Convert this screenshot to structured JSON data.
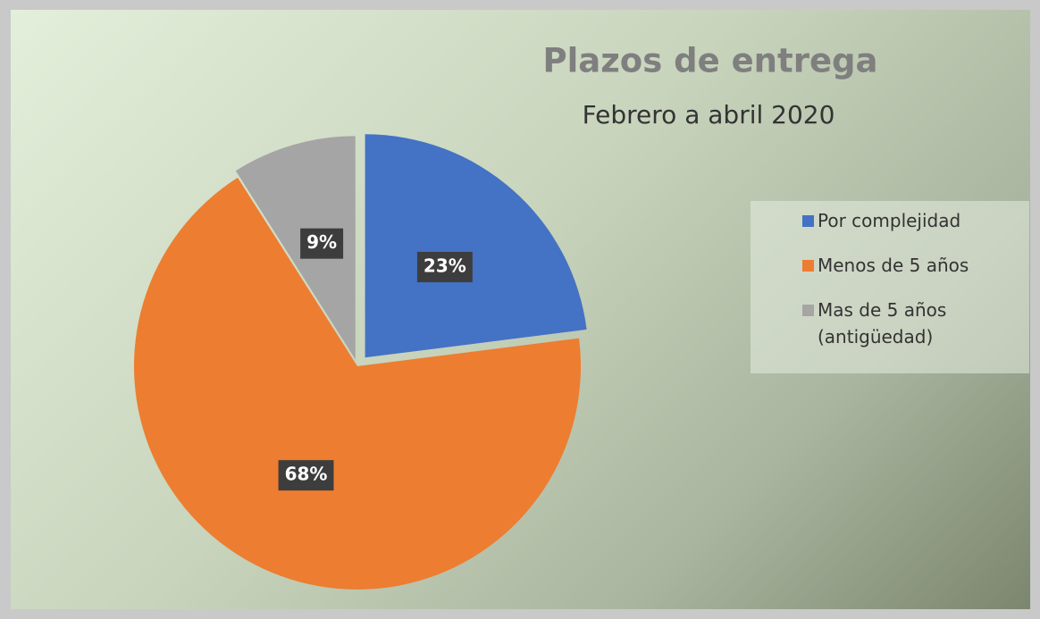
{
  "chart_data": {
    "type": "pie",
    "title": "Plazos de entrega",
    "subtitle": "Febrero a abril 2020",
    "categories": [
      "Por complejidad",
      "Menos de 5 años",
      "Mas de 5 años (antigüedad)"
    ],
    "values": [
      23,
      68,
      9
    ],
    "value_labels": [
      "23%",
      "68%",
      "9%"
    ],
    "colors": [
      "#4472c4",
      "#ed7d31",
      "#a5a5a5"
    ],
    "legend": "right"
  }
}
